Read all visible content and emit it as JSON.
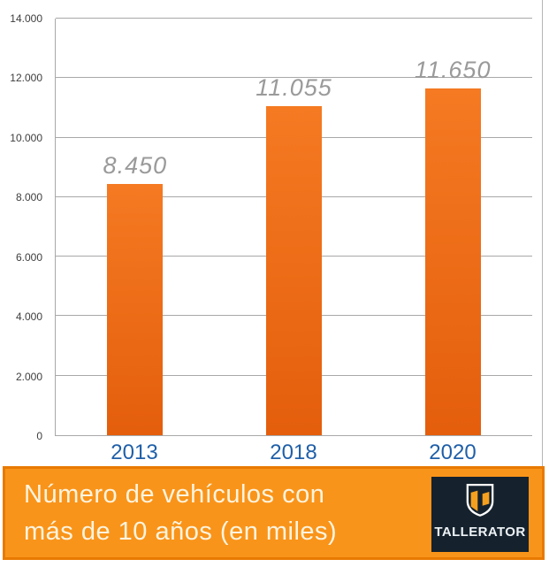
{
  "chart_data": {
    "type": "bar",
    "title": "Número de vehículos con más de 10 años (en miles)",
    "categories": [
      "2013",
      "2018",
      "2020"
    ],
    "values": [
      8450,
      11055,
      11650
    ],
    "value_labels": [
      "8.450",
      "11.055",
      "11.650"
    ],
    "xlabel": "",
    "ylabel": "",
    "ylim": [
      0,
      14000
    ],
    "yticks": [
      {
        "value": 0,
        "label": "0"
      },
      {
        "value": 2000,
        "label": "2.000"
      },
      {
        "value": 4000,
        "label": "4.000"
      },
      {
        "value": 6000,
        "label": "6.000"
      },
      {
        "value": 8000,
        "label": "8.000"
      },
      {
        "value": 10000,
        "label": "10.000"
      },
      {
        "value": 12000,
        "label": "12.000"
      },
      {
        "value": 14000,
        "label": "14.000"
      }
    ],
    "grid": true,
    "legend": false,
    "bar_color_top": "#f57a22",
    "bar_color_bottom": "#e45e0c",
    "value_label_color": "#9a9a9a",
    "category_label_color": "#1f5fa8",
    "grid_color": "#a8a8a8"
  },
  "banner": {
    "line1": "Número de vehículos con",
    "line2": "más de 10 años (en miles)",
    "fill_color": "#f9941a",
    "border_color": "#e87a00",
    "text_color": "#fcf4df"
  },
  "logo": {
    "brand": "TALLERATOR",
    "background_color": "#15222e",
    "accent_color": "#f5a01e",
    "shield_icon": "shield-with-letter-T"
  }
}
